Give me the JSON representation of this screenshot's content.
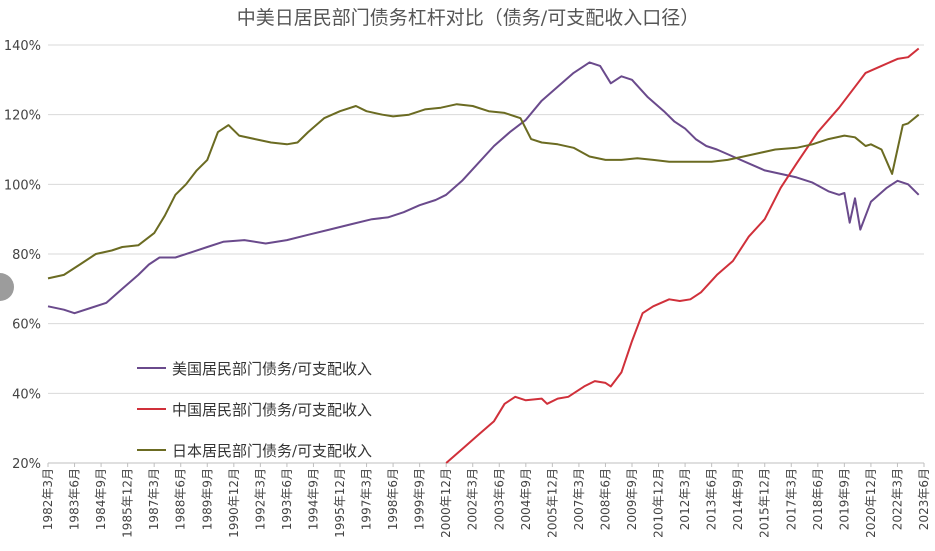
{
  "chart_data": {
    "type": "line",
    "title": "中美日居民部门债务杠杆对比（债务/可支配收入口径）",
    "xlabel": "",
    "ylabel": "",
    "ylim": [
      20,
      140
    ],
    "yticks": [
      "20%",
      "40%",
      "60%",
      "80%",
      "100%",
      "120%",
      "140%"
    ],
    "ytick_values": [
      20,
      40,
      60,
      80,
      100,
      120,
      140
    ],
    "x_range": [
      1982.25,
      2023.5
    ],
    "xticks": [
      "1982年3月",
      "1983年6月",
      "1984年9月",
      "1985年12月",
      "1987年3月",
      "1988年6月",
      "1989年9月",
      "1990年12月",
      "1992年3月",
      "1993年6月",
      "1994年9月",
      "1995年12月",
      "1997年3月",
      "1998年6月",
      "1999年9月",
      "2000年12月",
      "2002年3月",
      "2003年6月",
      "2004年9月",
      "2005年12月",
      "2007年3月",
      "2008年6月",
      "2009年9月",
      "2010年12月",
      "2012年3月",
      "2013年6月",
      "2014年9月",
      "2015年12月",
      "2017年3月",
      "2018年6月",
      "2019年9月",
      "2020年12月",
      "2022年3月",
      "2023年6月"
    ],
    "xtick_values": [
      1982.25,
      1983.5,
      1984.75,
      1986.0,
      1987.25,
      1988.5,
      1989.75,
      1991.0,
      1992.25,
      1993.5,
      1994.75,
      1996.0,
      1997.25,
      1998.5,
      1999.75,
      2001.0,
      2002.25,
      2003.5,
      2004.75,
      2006.0,
      2007.25,
      2008.5,
      2009.75,
      2011.0,
      2012.25,
      2013.5,
      2014.75,
      2016.0,
      2017.25,
      2018.5,
      2019.75,
      2021.0,
      2022.25,
      2023.5
    ],
    "grid": true,
    "legend_position": "lower-left",
    "series": [
      {
        "name": "美国居民部门债务/可支配收入",
        "color": "#6a4a8c",
        "x": [
          1982.25,
          1983.0,
          1983.5,
          1984.25,
          1985.0,
          1985.75,
          1986.5,
          1987.0,
          1987.5,
          1988.25,
          1989.0,
          1989.75,
          1990.5,
          1991.5,
          1992.5,
          1993.5,
          1994.5,
          1995.5,
          1996.5,
          1997.5,
          1998.25,
          1999.0,
          1999.75,
          2000.5,
          2001.0,
          2001.75,
          2002.5,
          2003.25,
          2004.0,
          2004.75,
          2005.5,
          2006.25,
          2007.0,
          2007.75,
          2008.25,
          2008.75,
          2009.25,
          2009.75,
          2010.5,
          2011.25,
          2011.75,
          2012.25,
          2012.75,
          2013.25,
          2013.75,
          2014.5,
          2015.25,
          2016.0,
          2016.75,
          2017.5,
          2018.25,
          2019.0,
          2019.5,
          2019.75,
          2020.0,
          2020.25,
          2020.5,
          2021.0,
          2021.75,
          2022.25,
          2022.75,
          2023.25
        ],
        "values": [
          65,
          64,
          63,
          64.5,
          66,
          70,
          74,
          77,
          79,
          79,
          80.5,
          82,
          83.5,
          84,
          83,
          84,
          85.5,
          87,
          88.5,
          90,
          90.5,
          92,
          94,
          95.5,
          97,
          101,
          106,
          111,
          115,
          118.5,
          124,
          128,
          132,
          135,
          134,
          129,
          131,
          130,
          125,
          121,
          118,
          116,
          113,
          111,
          110,
          108,
          106,
          104,
          103,
          102,
          100.5,
          98,
          97,
          97.5,
          89,
          96,
          87,
          95,
          99,
          101,
          100,
          97
        ]
      },
      {
        "name": "中国居民部门债务/可支配收入",
        "color": "#d0303a",
        "x": [
          2001.0,
          2001.75,
          2002.5,
          2003.25,
          2003.75,
          2004.25,
          2004.75,
          2005.5,
          2005.75,
          2006.25,
          2006.75,
          2007.5,
          2008.0,
          2008.5,
          2008.75,
          2009.25,
          2009.75,
          2010.25,
          2010.75,
          2011.5,
          2012.0,
          2012.5,
          2013.0,
          2013.75,
          2014.5,
          2015.25,
          2016.0,
          2016.75,
          2017.5,
          2018.5,
          2019.5,
          2020.25,
          2020.75,
          2021.5,
          2022.25,
          2022.75,
          2023.25
        ],
        "values": [
          20,
          24,
          28,
          32,
          37,
          39,
          38,
          38.5,
          37,
          38.5,
          39,
          42,
          43.5,
          43,
          42,
          46,
          55,
          63,
          65,
          67,
          66.5,
          67,
          69,
          74,
          78,
          85,
          90,
          99,
          106,
          115,
          122,
          128,
          132,
          134,
          136,
          136.5,
          139
        ]
      },
      {
        "name": "日本居民部门债务/可支配收入",
        "color": "#6b6b22",
        "x": [
          1982.25,
          1983.0,
          1983.75,
          1984.5,
          1985.25,
          1985.75,
          1986.5,
          1987.25,
          1987.75,
          1988.25,
          1988.75,
          1989.25,
          1989.75,
          1990.25,
          1990.75,
          1991.25,
          1992.0,
          1992.75,
          1993.5,
          1994.0,
          1994.5,
          1995.25,
          1996.0,
          1996.75,
          1997.25,
          1998.0,
          1998.5,
          1999.25,
          2000.0,
          2000.75,
          2001.5,
          2002.25,
          2003.0,
          2003.75,
          2004.5,
          2005.0,
          2005.5,
          2006.25,
          2007.0,
          2007.75,
          2008.5,
          2009.25,
          2010.0,
          2010.75,
          2011.5,
          2012.5,
          2013.5,
          2014.25,
          2015.0,
          2015.75,
          2016.5,
          2017.5,
          2018.25,
          2019.0,
          2019.75,
          2020.25,
          2020.75,
          2021.0,
          2021.5,
          2022.0,
          2022.5,
          2022.75,
          2023.25
        ],
        "values": [
          73,
          74,
          77,
          80,
          81,
          82,
          82.5,
          86,
          91,
          97,
          100,
          104,
          107,
          115,
          117,
          114,
          113,
          112,
          111.5,
          112,
          115,
          119,
          121,
          122.5,
          121,
          120,
          119.5,
          120,
          121.5,
          122,
          123,
          122.5,
          121,
          120.5,
          119,
          113,
          112,
          111.5,
          110.5,
          108,
          107,
          107,
          107.5,
          107,
          106.5,
          106.5,
          106.5,
          107,
          108,
          109,
          110,
          110.5,
          111.5,
          113,
          114,
          113.5,
          111,
          111.5,
          110,
          103,
          117,
          117.5,
          120
        ]
      }
    ]
  }
}
